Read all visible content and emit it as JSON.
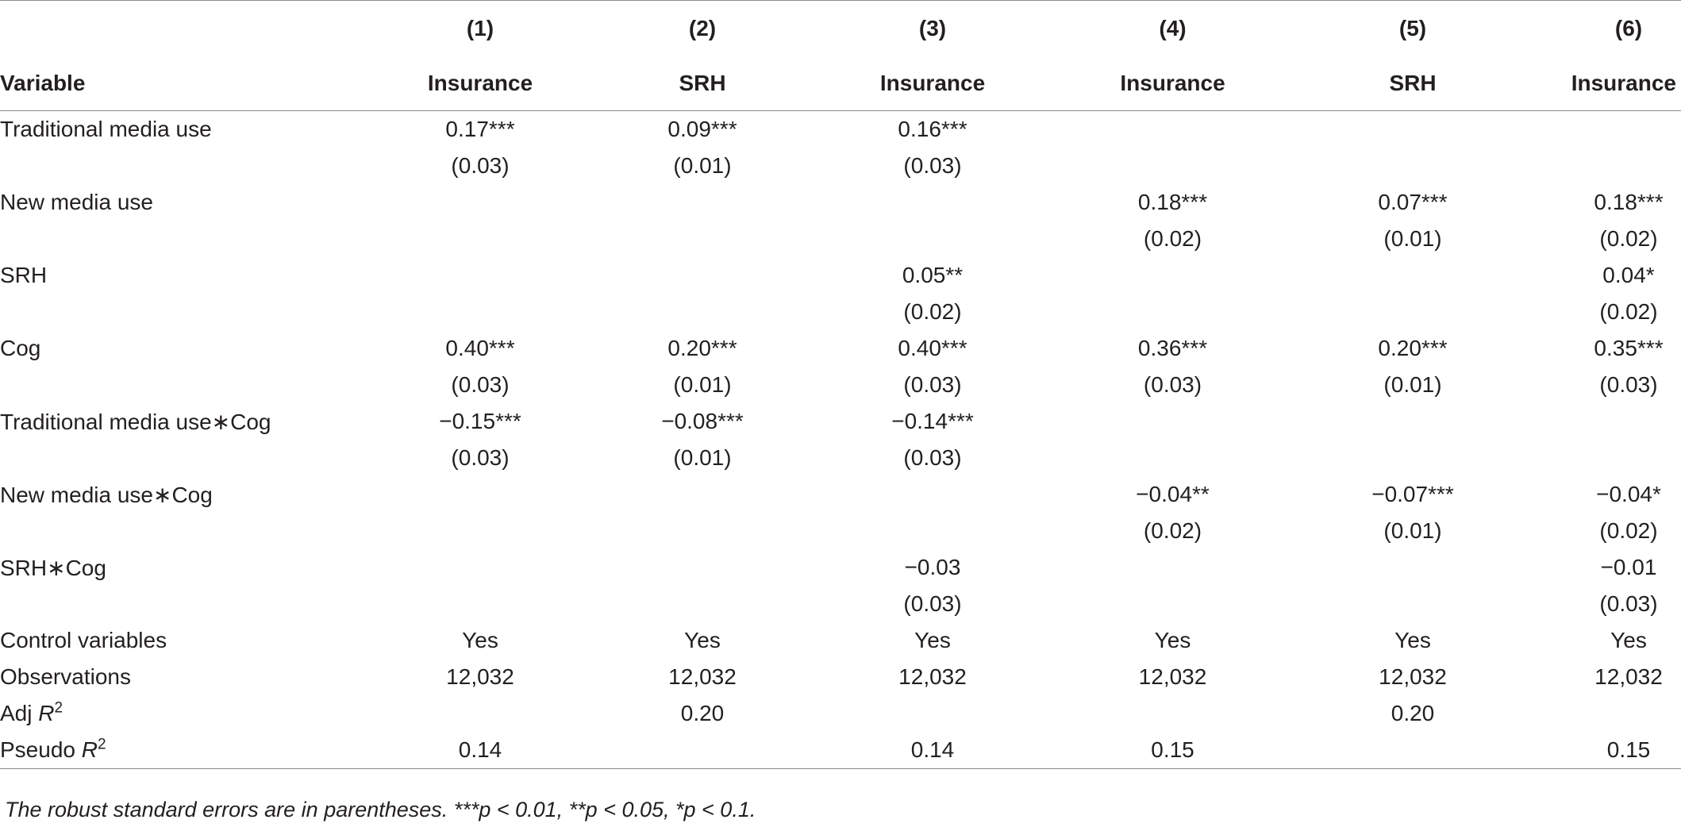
{
  "table": {
    "column_numbers": [
      "(1)",
      "(2)",
      "(3)",
      "(4)",
      "(5)",
      "(6)"
    ],
    "variable_header": "Variable",
    "column_labels": [
      "Insurance",
      "SRH",
      "Insurance",
      "Insurance",
      "SRH",
      "Insurance"
    ],
    "rows": [
      {
        "label": "Traditional media use",
        "values": [
          "0.17***",
          "0.09***",
          "0.16***",
          "",
          "",
          ""
        ]
      },
      {
        "label": "",
        "values": [
          "(0.03)",
          "(0.01)",
          "(0.03)",
          "",
          "",
          ""
        ]
      },
      {
        "label": "New media use",
        "values": [
          "",
          "",
          "",
          "0.18***",
          "0.07***",
          "0.18***"
        ]
      },
      {
        "label": "",
        "values": [
          "",
          "",
          "",
          "(0.02)",
          "(0.01)",
          "(0.02)"
        ]
      },
      {
        "label": "SRH",
        "values": [
          "",
          "",
          "0.05**",
          "",
          "",
          "0.04*"
        ]
      },
      {
        "label": "",
        "values": [
          "",
          "",
          "(0.02)",
          "",
          "",
          "(0.02)"
        ]
      },
      {
        "label": "Cog",
        "values": [
          "0.40***",
          "0.20***",
          "0.40***",
          "0.36***",
          "0.20***",
          "0.35***"
        ]
      },
      {
        "label": "",
        "values": [
          "(0.03)",
          "(0.01)",
          "(0.03)",
          "(0.03)",
          "(0.01)",
          "(0.03)"
        ]
      },
      {
        "label": "Traditional media use∗Cog",
        "values": [
          "−0.15***",
          "−0.08***",
          "−0.14***",
          "",
          "",
          ""
        ]
      },
      {
        "label": "",
        "values": [
          "(0.03)",
          "(0.01)",
          "(0.03)",
          "",
          "",
          ""
        ]
      },
      {
        "label": "New media use∗Cog",
        "values": [
          "",
          "",
          "",
          "−0.04**",
          "−0.07***",
          "−0.04*"
        ]
      },
      {
        "label": "",
        "values": [
          "",
          "",
          "",
          "(0.02)",
          "(0.01)",
          "(0.02)"
        ]
      },
      {
        "label": "SRH∗Cog",
        "values": [
          "",
          "",
          "−0.03",
          "",
          "",
          "−0.01"
        ]
      },
      {
        "label": "",
        "values": [
          "",
          "",
          "(0.03)",
          "",
          "",
          "(0.03)"
        ]
      },
      {
        "label": "Control variables",
        "values": [
          "Yes",
          "Yes",
          "Yes",
          "Yes",
          "Yes",
          "Yes"
        ]
      },
      {
        "label": "Observations",
        "values": [
          "12,032",
          "12,032",
          "12,032",
          "12,032",
          "12,032",
          "12,032"
        ]
      }
    ],
    "adj_r2": {
      "label_prefix": "Adj ",
      "label_var": "R",
      "label_sup": "2",
      "values": [
        "",
        "0.20",
        "",
        "",
        "0.20",
        ""
      ]
    },
    "pseudo_r2": {
      "label_prefix": "Pseudo ",
      "label_var": "R",
      "label_sup": "2",
      "values": [
        "0.14",
        "",
        "0.14",
        "0.15",
        "",
        "0.15"
      ]
    }
  },
  "footnote": "The robust standard errors are in parentheses. ***p < 0.01, **p < 0.05, *p < 0.1."
}
